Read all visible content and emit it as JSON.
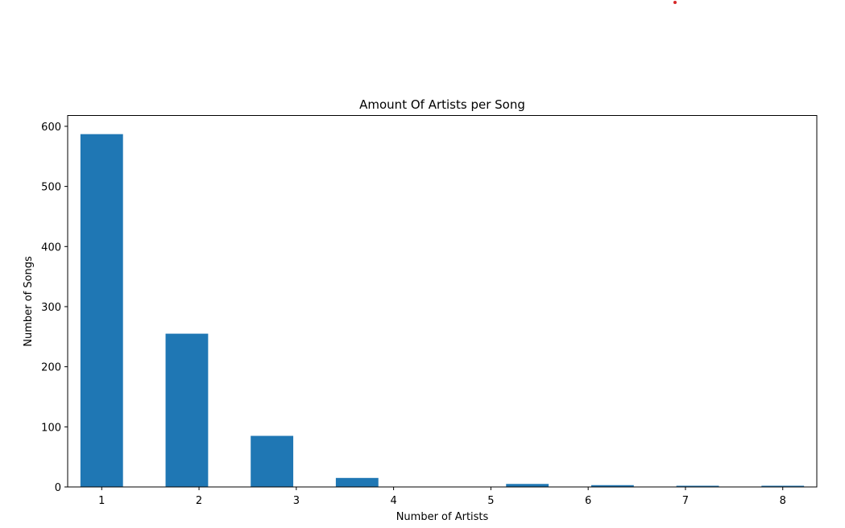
{
  "colors": {
    "bar": "#1f77b4",
    "marker": "#d62728"
  },
  "chart_data": {
    "type": "bar",
    "title": "Amount Of Artists per Song",
    "xlabel": "Number of Artists",
    "ylabel": "Number of Songs",
    "ylim": [
      0,
      618
    ],
    "xlim": [
      0.65,
      8.35
    ],
    "yticks": [
      0,
      100,
      200,
      300,
      400,
      500,
      600
    ],
    "xticks": [
      1,
      2,
      3,
      4,
      5,
      6,
      7,
      8
    ],
    "grid": false,
    "bars": [
      {
        "x": 1.0,
        "value": 587
      },
      {
        "x": 1.875,
        "value": 255
      },
      {
        "x": 2.75,
        "value": 85
      },
      {
        "x": 3.625,
        "value": 15
      },
      {
        "x": 5.375,
        "value": 5
      },
      {
        "x": 6.25,
        "value": 3
      },
      {
        "x": 7.125,
        "value": 2
      },
      {
        "x": 8.0,
        "value": 2
      }
    ],
    "bar_width_units": 0.4375
  }
}
